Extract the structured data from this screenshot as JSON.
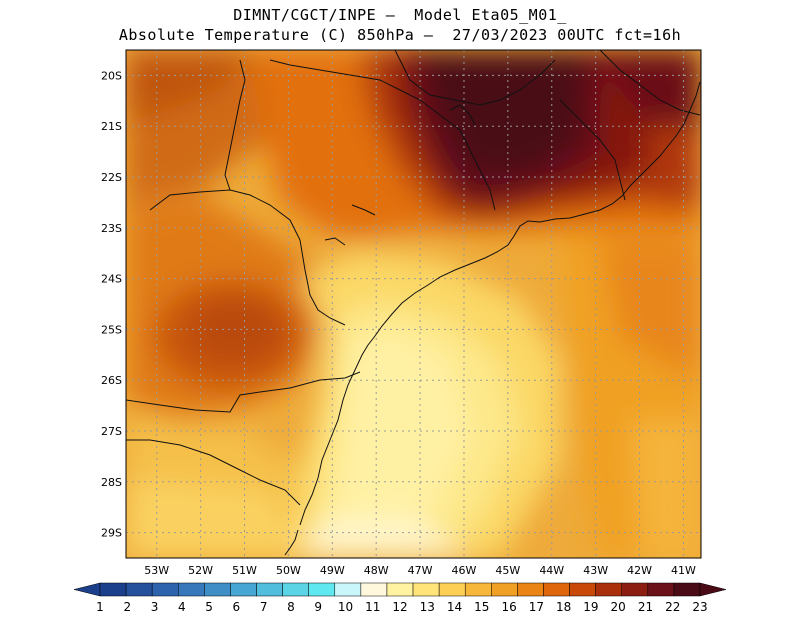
{
  "header": {
    "line1": "DIMNT/CGCT/INPE –  Model Eta05_M01_",
    "line2": "Absolute Temperature (C) 850hPa –  27/03/2023 00UTC fct=16h"
  },
  "map": {
    "lat_labels": [
      "20S",
      "21S",
      "22S",
      "23S",
      "24S",
      "25S",
      "26S",
      "27S",
      "28S",
      "29S"
    ],
    "lon_labels": [
      "53W",
      "52W",
      "51W",
      "50W",
      "49W",
      "48W",
      "47W",
      "46W",
      "45W",
      "44W",
      "43W",
      "42W",
      "41W"
    ],
    "lat_range": [
      -29.5,
      -19.5
    ],
    "lon_range": [
      -53.7,
      -40.6
    ]
  },
  "colorbar": {
    "labels": [
      "1",
      "2",
      "3",
      "4",
      "5",
      "6",
      "7",
      "8",
      "9",
      "10",
      "11",
      "12",
      "13",
      "14",
      "15",
      "16",
      "17",
      "18",
      "19",
      "20",
      "21",
      "22",
      "23"
    ],
    "colors": [
      "#1b3f8b",
      "#24509c",
      "#2d63ad",
      "#3678b9",
      "#3f8ec5",
      "#47a6d3",
      "#51bedd",
      "#5bd4e6",
      "#5fe8ef",
      "#c9f6fa",
      "#fff8dc",
      "#fff2a0",
      "#ffe47a",
      "#fdd055",
      "#f7b73a",
      "#f0a024",
      "#ea8515",
      "#e0660c",
      "#c94a08",
      "#a9300b",
      "#8c1d12",
      "#6b1119",
      "#4a0b16"
    ]
  }
}
